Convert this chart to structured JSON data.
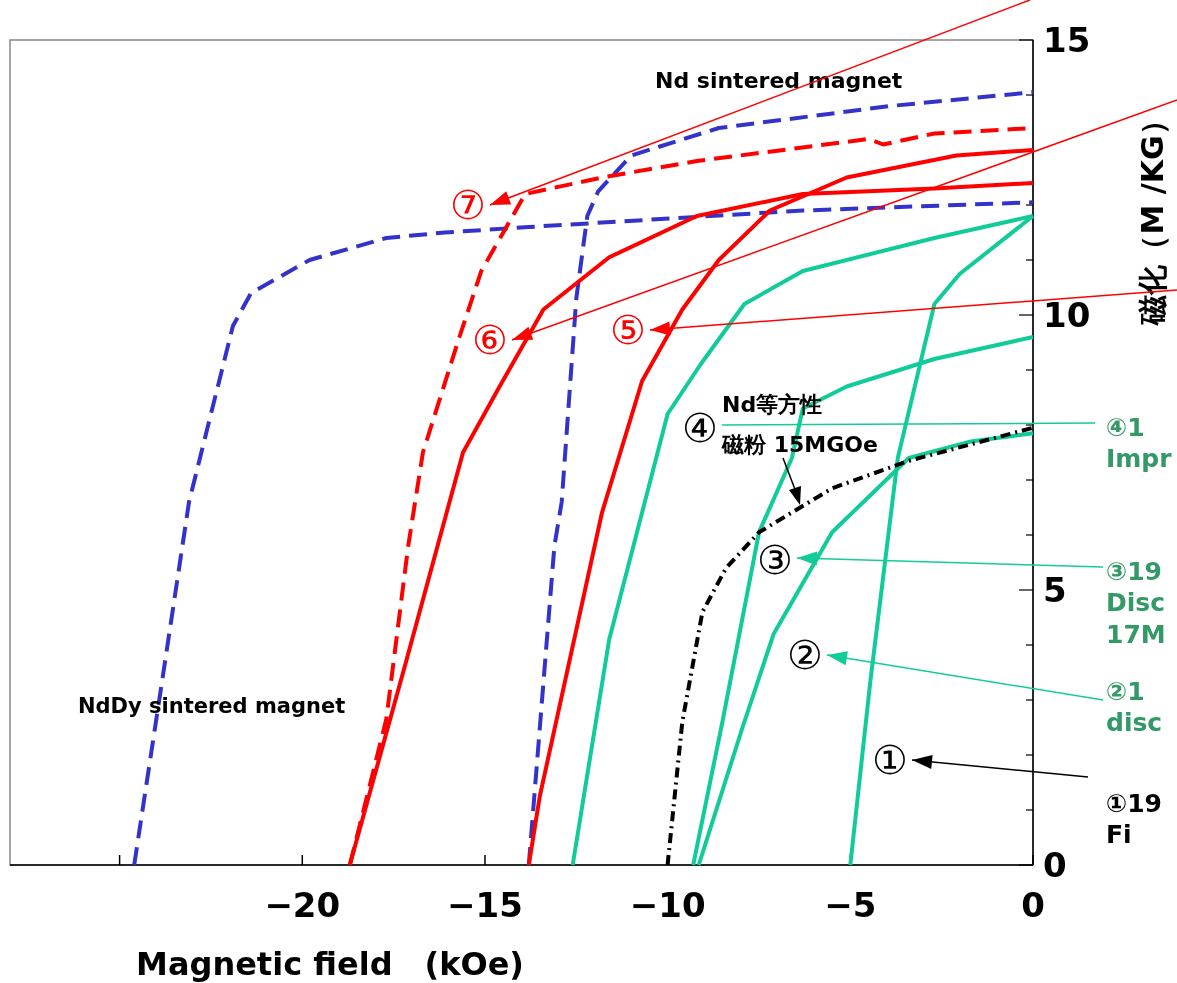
{
  "chart_data": {
    "type": "line",
    "xlabel": "Magnetic field　(kOe)",
    "ylabel": "磁化（M /KG）",
    "xlim": [
      -28,
      0
    ],
    "ylim": [
      0,
      15
    ],
    "xticks": [
      {
        "value": -25,
        "label": null
      },
      -20,
      -15,
      -10,
      -5,
      0
    ],
    "yticks": [
      0,
      {
        "value": 1,
        "label": null
      },
      {
        "value": 2,
        "label": null
      },
      {
        "value": 3,
        "label": null
      },
      {
        "value": 4,
        "label": null
      },
      5,
      {
        "value": 6,
        "label": null
      },
      {
        "value": 7,
        "label": null
      },
      {
        "value": 8,
        "label": null
      },
      {
        "value": 9,
        "label": null
      },
      10,
      {
        "value": 11,
        "label": null
      },
      {
        "value": 12,
        "label": null
      },
      {
        "value": 13,
        "label": null
      },
      {
        "value": 14,
        "label": null
      },
      15
    ],
    "grid": false,
    "series": [
      {
        "color": "#3333cc",
        "line_style": "dashed",
        "x": [
          -24.6,
          -23.8,
          -23.1,
          -21.9,
          -21.4,
          -19.8,
          -17.7,
          -16.1,
          -13.8,
          -6.3,
          0
        ],
        "values": [
          0,
          3.5,
          6.6,
          9.8,
          10.4,
          11.0,
          11.4,
          11.5,
          11.6,
          11.9,
          12.05
        ]
      },
      {
        "color": "#3333cc",
        "line_style": "dashed",
        "x": [
          -13.8,
          -13.1,
          -12.9,
          -12.5,
          -12.2,
          -11.9,
          -11.0,
          -8.6,
          -3.9,
          0
        ],
        "values": [
          0,
          5.8,
          6.6,
          10.3,
          11.8,
          12.25,
          12.9,
          13.4,
          13.8,
          14.05
        ]
      },
      {
        "color": "#ff0000",
        "line_style": "dashed",
        "x": [
          -18.7,
          -17.7,
          -17.1,
          -16.7,
          -15.7,
          -15.1,
          -13.9,
          -11.8,
          -9.2,
          -4.5,
          -4.1,
          -2.7,
          0
        ],
        "values": [
          0,
          2.65,
          5.8,
          7.5,
          9.6,
          10.8,
          12.2,
          12.5,
          12.8,
          13.2,
          13.1,
          13.3,
          13.4
        ]
      },
      {
        "color": "#ff0000",
        "line_style": "solid",
        "x": [
          -18.7,
          -17.2,
          -15.6,
          -14.6,
          -13.4,
          -11.6,
          -9.2,
          -6.3,
          -2.7,
          0
        ],
        "values": [
          0,
          3.6,
          7.5,
          8.7,
          10.1,
          11.05,
          11.8,
          12.2,
          12.3,
          12.4
        ]
      },
      {
        "color": "#ff0000",
        "line_style": "solid",
        "x": [
          -13.8,
          -13.5,
          -11.8,
          -10.7,
          -9.6,
          -8.6,
          -7.2,
          -5.1,
          -2.1,
          0
        ],
        "values": [
          0,
          1.25,
          6.4,
          8.8,
          10.1,
          11.0,
          11.9,
          12.5,
          12.9,
          13.0
        ]
      },
      {
        "color": "#11cc99",
        "line_style": "solid",
        "x": [
          -12.6,
          -11.6,
          -10.0,
          -9.1,
          -7.9,
          -6.3,
          -2.7,
          0
        ],
        "values": [
          0,
          4.1,
          8.2,
          9.1,
          10.2,
          10.8,
          11.4,
          11.8
        ]
      },
      {
        "color": "#11cc99",
        "line_style": "solid",
        "x": [
          -9.3,
          -8.5,
          -7.5,
          -6.6,
          -6.3,
          -5.1,
          -2.7,
          0
        ],
        "values": [
          0,
          2.6,
          6.05,
          7.4,
          8.3,
          8.7,
          9.2,
          9.6
        ]
      },
      {
        "color": "#11cc99",
        "line_style": "solid",
        "x": [
          -9.15,
          -7.95,
          -7.1,
          -5.5,
          -3.4,
          -1.7,
          0
        ],
        "values": [
          0,
          2.5,
          4.2,
          6.05,
          7.4,
          7.7,
          7.85
        ]
      },
      {
        "color": "#11cc99",
        "line_style": "solid",
        "x": [
          -5.0,
          -4.45,
          -3.7,
          -2.7,
          -2.0,
          0
        ],
        "values": [
          0,
          3.35,
          7.4,
          10.2,
          10.75,
          11.8
        ]
      },
      {
        "color": "#000000",
        "line_style": "dashdot",
        "x": [
          -10.0,
          -9.6,
          -9.05,
          -8.4,
          -7.5,
          -5.5,
          -3.4,
          0
        ],
        "values": [
          0,
          2.6,
          4.6,
          5.4,
          6.05,
          6.85,
          7.35,
          7.95
        ]
      }
    ],
    "annotations": [
      "Nd sintered magnet",
      "NdDy sintered magnet",
      "Nd等方性",
      "磁粉 15MGOe",
      "⑦",
      "⑥",
      "⑤",
      "④",
      "③",
      "②",
      "①",
      "④1\nImpr",
      "③19\nDisc\n17M",
      "②1\ndisc",
      "①19\nFi"
    ]
  }
}
